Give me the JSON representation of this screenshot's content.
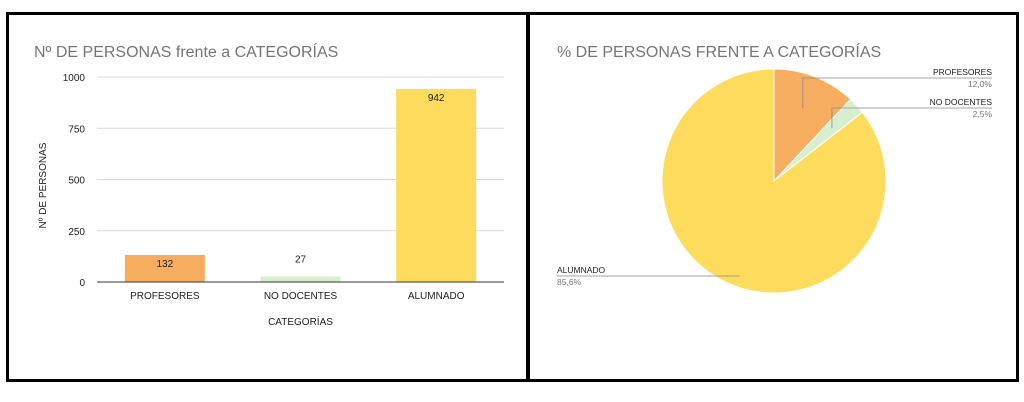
{
  "charts": [
    {
      "type": "bar",
      "title": "Nº DE PERSONAS frente a CATEGORÍAS",
      "xlabel": "CATEGORÍAS",
      "ylabel": "Nº DE PERSONAS",
      "ylim": [
        0,
        1000
      ],
      "yticks": [
        "0",
        "250",
        "500",
        "750",
        "1000"
      ],
      "grid": true,
      "categories": [
        "PROFESORES",
        "NO DOCENTES",
        "ALUMNADO"
      ],
      "values": [
        132,
        27,
        942
      ],
      "value_labels": [
        "132",
        "27",
        "942"
      ],
      "colors": [
        "#F6AD60",
        "#D7EFD1",
        "#FDDB5C"
      ]
    },
    {
      "type": "pie",
      "title": "% DE PERSONAS FRENTE A CATEGORÍAS",
      "labels": [
        "PROFESORES",
        "NO DOCENTES",
        "ALUMNADO"
      ],
      "values": [
        12.0,
        2.5,
        85.6
      ],
      "pct_labels": [
        "12,0%",
        "2,5%",
        "85,6%"
      ],
      "colors": [
        "#F6AD60",
        "#D7EFD1",
        "#FDDB5C"
      ]
    }
  ]
}
